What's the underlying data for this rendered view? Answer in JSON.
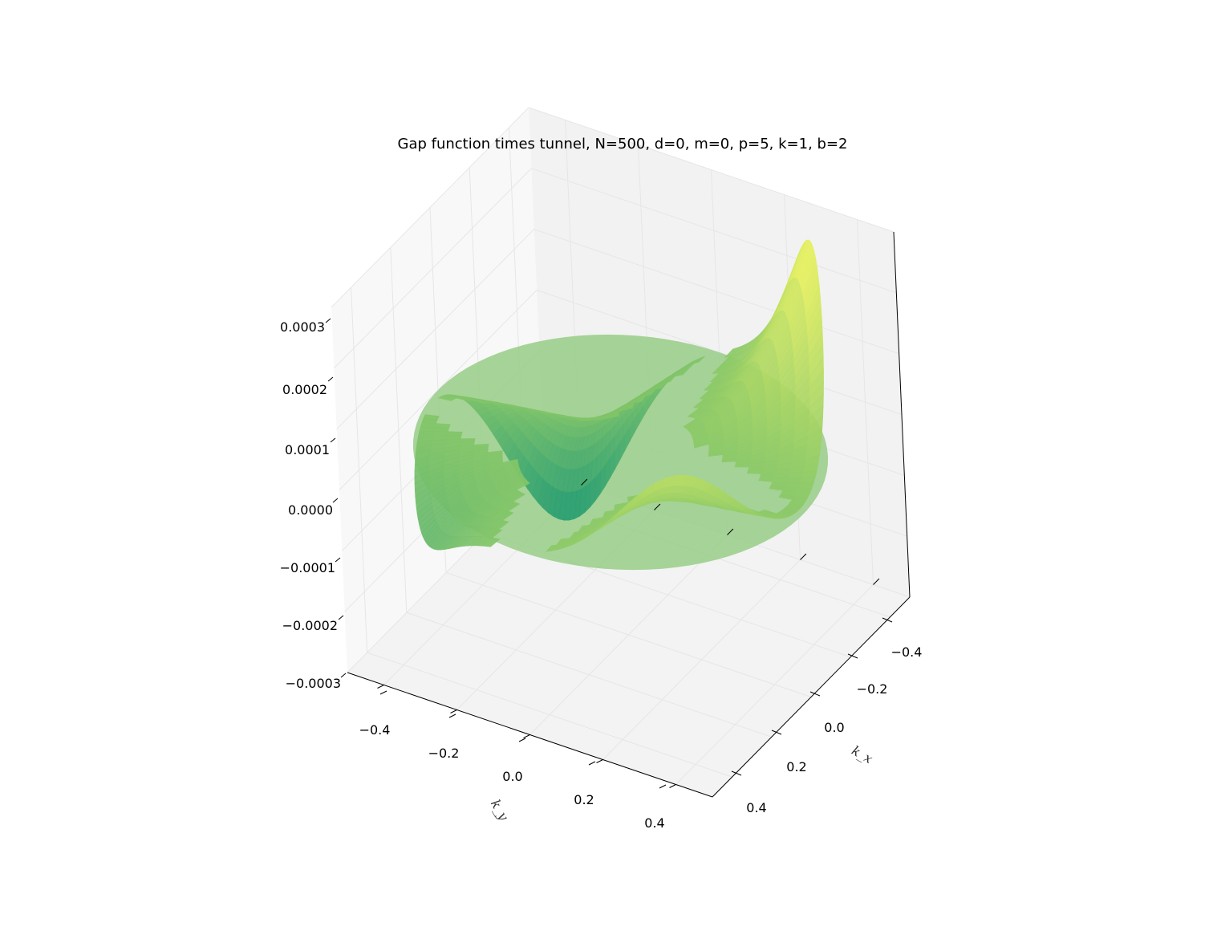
{
  "chart_data": {
    "type": "surface3d",
    "title": "Gap function times tunnel, N=500, d=0, m=0, p=5, k=1, b=2",
    "xlabel": "k_x",
    "ylabel": "k_y",
    "x_ticks": [
      "−0.4",
      "−0.2",
      "0.0",
      "0.2",
      "0.4"
    ],
    "y_ticks": [
      "−0.4",
      "−0.2",
      "0.0",
      "0.2",
      "0.4"
    ],
    "z_ticks": [
      "−0.0003",
      "−0.0002",
      "−0.0001",
      "0.0000",
      "0.0001",
      "0.0002",
      "0.0003"
    ],
    "xlim": [
      -0.5,
      0.5
    ],
    "ylim": [
      -0.5,
      0.5
    ],
    "zlim": [
      -0.0003,
      0.0003
    ],
    "grid": true,
    "colormap": "summer",
    "surface": {
      "support_radius": 0.5,
      "lobes": [
        {
          "angle_deg": 135,
          "peak": 0.0003
        },
        {
          "angle_deg": 45,
          "peak": 0.00015
        },
        {
          "angle_deg": -45,
          "peak": -0.0001
        },
        {
          "angle_deg": -135,
          "peak": -0.0003
        }
      ]
    },
    "colors": {
      "pane_left": "#f2f2f2",
      "pane_right": "#f8f8f8",
      "pane_floor": "#f3f3f3",
      "grid": "#e6e6e6",
      "disc": "#98cc86",
      "high": "#f0f55e",
      "low": "#1f9a73"
    }
  }
}
